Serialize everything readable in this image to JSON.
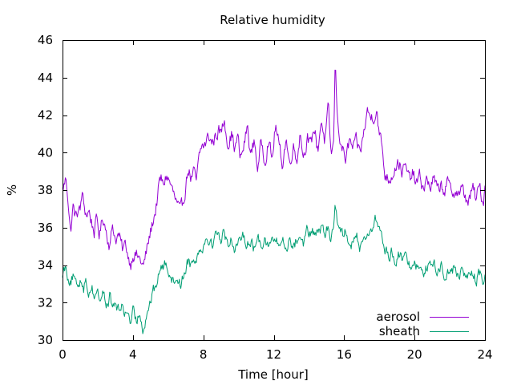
{
  "chart_data": {
    "type": "line",
    "title": "Relative humidity",
    "xlabel": "Time [hour]",
    "ylabel": "%",
    "xlim": [
      0,
      24
    ],
    "ylim": [
      30,
      46
    ],
    "xticks": [
      0,
      4,
      8,
      12,
      16,
      20,
      24
    ],
    "yticks": [
      30,
      32,
      34,
      36,
      38,
      40,
      42,
      44,
      46
    ],
    "grid": false,
    "legend": "bottom-right",
    "series": [
      {
        "name": "aerosol",
        "color": "#9400d3",
        "x": [
          0,
          0.2,
          0.3,
          0.45,
          0.6,
          0.75,
          0.9,
          1.0,
          1.1,
          1.2,
          1.35,
          1.5,
          1.65,
          1.8,
          1.95,
          2.1,
          2.3,
          2.5,
          2.7,
          2.85,
          3.0,
          3.2,
          3.4,
          3.6,
          3.75,
          3.9,
          4.0,
          4.2,
          4.4,
          4.6,
          4.75,
          4.9,
          5.1,
          5.3,
          5.5,
          5.6,
          5.7,
          5.9,
          6.1,
          6.3,
          6.5,
          6.7,
          6.9,
          7.0,
          7.15,
          7.3,
          7.45,
          7.6,
          7.75,
          7.9,
          8.1,
          8.3,
          8.5,
          8.7,
          8.85,
          9.0,
          9.2,
          9.4,
          9.6,
          9.8,
          9.95,
          10.1,
          10.3,
          10.5,
          10.7,
          10.9,
          11.1,
          11.3,
          11.5,
          11.7,
          11.9,
          12.1,
          12.3,
          12.5,
          12.7,
          12.9,
          13.1,
          13.3,
          13.5,
          13.7,
          13.9,
          14.1,
          14.3,
          14.5,
          14.7,
          14.9,
          15.1,
          15.25,
          15.4,
          15.5,
          15.6,
          15.75,
          15.9,
          16.1,
          16.3,
          16.5,
          16.7,
          16.9,
          17.1,
          17.3,
          17.5,
          17.7,
          17.85,
          18.0,
          18.15,
          18.3,
          18.5,
          18.7,
          18.9,
          19.1,
          19.3,
          19.5,
          19.7,
          19.9,
          20.1,
          20.3,
          20.5,
          20.7,
          20.9,
          21.1,
          21.3,
          21.5,
          21.7,
          21.9,
          22.1,
          22.3,
          22.5,
          22.7,
          22.9,
          23.1,
          23.3,
          23.5,
          23.7,
          23.9,
          24.0
        ],
        "y": [
          38.0,
          38.6,
          37.8,
          35.7,
          37.1,
          36.5,
          37.0,
          36.8,
          37.9,
          37.2,
          36.7,
          36.9,
          36.3,
          35.8,
          36.4,
          35.6,
          36.6,
          35.8,
          35.0,
          36.2,
          35.4,
          35.6,
          34.8,
          35.1,
          34.4,
          34.1,
          34.7,
          34.5,
          34.3,
          33.9,
          34.6,
          35.3,
          36.2,
          37.0,
          38.3,
          38.6,
          38.2,
          38.8,
          38.4,
          37.8,
          37.2,
          36.7,
          37.6,
          38.3,
          39.2,
          38.6,
          38.9,
          38.4,
          39.6,
          40.3,
          40.4,
          40.9,
          40.5,
          40.9,
          41.2,
          41.0,
          41.8,
          40.5,
          41.0,
          40.2,
          40.9,
          39.6,
          40.3,
          41.4,
          39.8,
          40.7,
          39.1,
          40.6,
          39.6,
          40.8,
          39.5,
          41.5,
          40.3,
          39.4,
          40.8,
          39.3,
          40.5,
          39.6,
          41.1,
          39.8,
          40.9,
          40.2,
          41.4,
          40.1,
          41.8,
          40.6,
          42.3,
          39.9,
          40.4,
          45.1,
          42.0,
          40.9,
          40.2,
          39.6,
          40.6,
          40.2,
          40.5,
          40.0,
          40.9,
          42.2,
          41.9,
          42.0,
          42.4,
          40.9,
          40.4,
          38.9,
          38.6,
          38.8,
          39.3,
          39.5,
          39.0,
          39.2,
          38.5,
          38.9,
          38.3,
          38.7,
          38.1,
          38.5,
          38.2,
          38.6,
          37.9,
          38.3,
          38.0,
          38.4,
          37.7,
          38.1,
          37.8,
          38.0,
          37.6,
          37.4,
          38.1,
          37.5,
          38.2,
          37.3,
          38.3
        ],
        "y_fine_amp": 0.65
      },
      {
        "name": "sheath",
        "color": "#009e73",
        "x": [
          0,
          0.2,
          0.3,
          0.45,
          0.6,
          0.75,
          0.9,
          1.0,
          1.1,
          1.2,
          1.35,
          1.5,
          1.65,
          1.8,
          1.95,
          2.1,
          2.3,
          2.5,
          2.7,
          2.85,
          3.0,
          3.2,
          3.4,
          3.6,
          3.75,
          3.9,
          4.0,
          4.2,
          4.4,
          4.6,
          4.75,
          4.9,
          5.1,
          5.3,
          5.5,
          5.6,
          5.7,
          5.9,
          6.1,
          6.3,
          6.5,
          6.7,
          6.9,
          7.0,
          7.15,
          7.3,
          7.45,
          7.6,
          7.75,
          7.9,
          8.1,
          8.3,
          8.5,
          8.7,
          8.85,
          9.0,
          9.2,
          9.4,
          9.6,
          9.8,
          9.95,
          10.1,
          10.3,
          10.5,
          10.7,
          10.9,
          11.1,
          11.3,
          11.5,
          11.7,
          11.9,
          12.1,
          12.3,
          12.5,
          12.7,
          12.9,
          13.1,
          13.3,
          13.5,
          13.7,
          13.9,
          14.1,
          14.3,
          14.5,
          14.7,
          14.9,
          15.1,
          15.25,
          15.4,
          15.5,
          15.6,
          15.75,
          15.9,
          16.1,
          16.3,
          16.5,
          16.7,
          16.9,
          17.1,
          17.3,
          17.5,
          17.7,
          17.85,
          18.0,
          18.15,
          18.3,
          18.5,
          18.7,
          18.9,
          19.1,
          19.3,
          19.5,
          19.7,
          19.9,
          20.1,
          20.3,
          20.5,
          20.7,
          20.9,
          21.1,
          21.3,
          21.5,
          21.7,
          21.9,
          22.1,
          22.3,
          22.5,
          22.7,
          22.9,
          23.1,
          23.3,
          23.5,
          23.7,
          23.9,
          24.0
        ],
        "y": [
          33.6,
          34.0,
          33.5,
          33.1,
          33.4,
          32.8,
          33.0,
          33.2,
          33.3,
          32.9,
          33.1,
          32.5,
          33.0,
          32.3,
          32.7,
          32.2,
          32.6,
          31.8,
          32.4,
          31.6,
          32.0,
          31.5,
          31.9,
          31.3,
          31.6,
          30.7,
          31.4,
          31.0,
          31.5,
          30.6,
          31.3,
          31.8,
          32.4,
          32.9,
          33.6,
          34.1,
          33.8,
          34.2,
          33.6,
          33.1,
          33.4,
          33.0,
          33.5,
          33.9,
          34.3,
          34.0,
          34.6,
          34.2,
          34.9,
          35.0,
          35.3,
          35.5,
          35.1,
          35.6,
          35.9,
          35.4,
          35.7,
          35.2,
          35.4,
          34.9,
          35.3,
          35.0,
          35.6,
          35.2,
          35.4,
          34.8,
          35.5,
          35.1,
          35.6,
          34.9,
          35.4,
          35.3,
          35.0,
          35.4,
          34.8,
          35.5,
          35.0,
          35.3,
          35.6,
          35.2,
          35.9,
          35.5,
          35.8,
          35.6,
          36.0,
          35.5,
          36.1,
          35.4,
          36.0,
          37.4,
          36.5,
          36.2,
          35.6,
          35.9,
          35.3,
          35.1,
          35.5,
          35.0,
          35.6,
          35.4,
          36.0,
          36.2,
          36.5,
          35.9,
          35.5,
          34.8,
          34.5,
          34.7,
          34.3,
          34.6,
          34.2,
          34.5,
          34.0,
          34.3,
          33.9,
          34.2,
          33.7,
          34.0,
          33.8,
          34.1,
          33.6,
          34.0,
          33.5,
          33.8,
          33.6,
          33.9,
          33.4,
          33.7,
          33.3,
          33.6,
          33.5,
          33.2,
          33.5,
          33.1,
          33.6
        ],
        "y_fine_amp": 0.55
      }
    ]
  }
}
